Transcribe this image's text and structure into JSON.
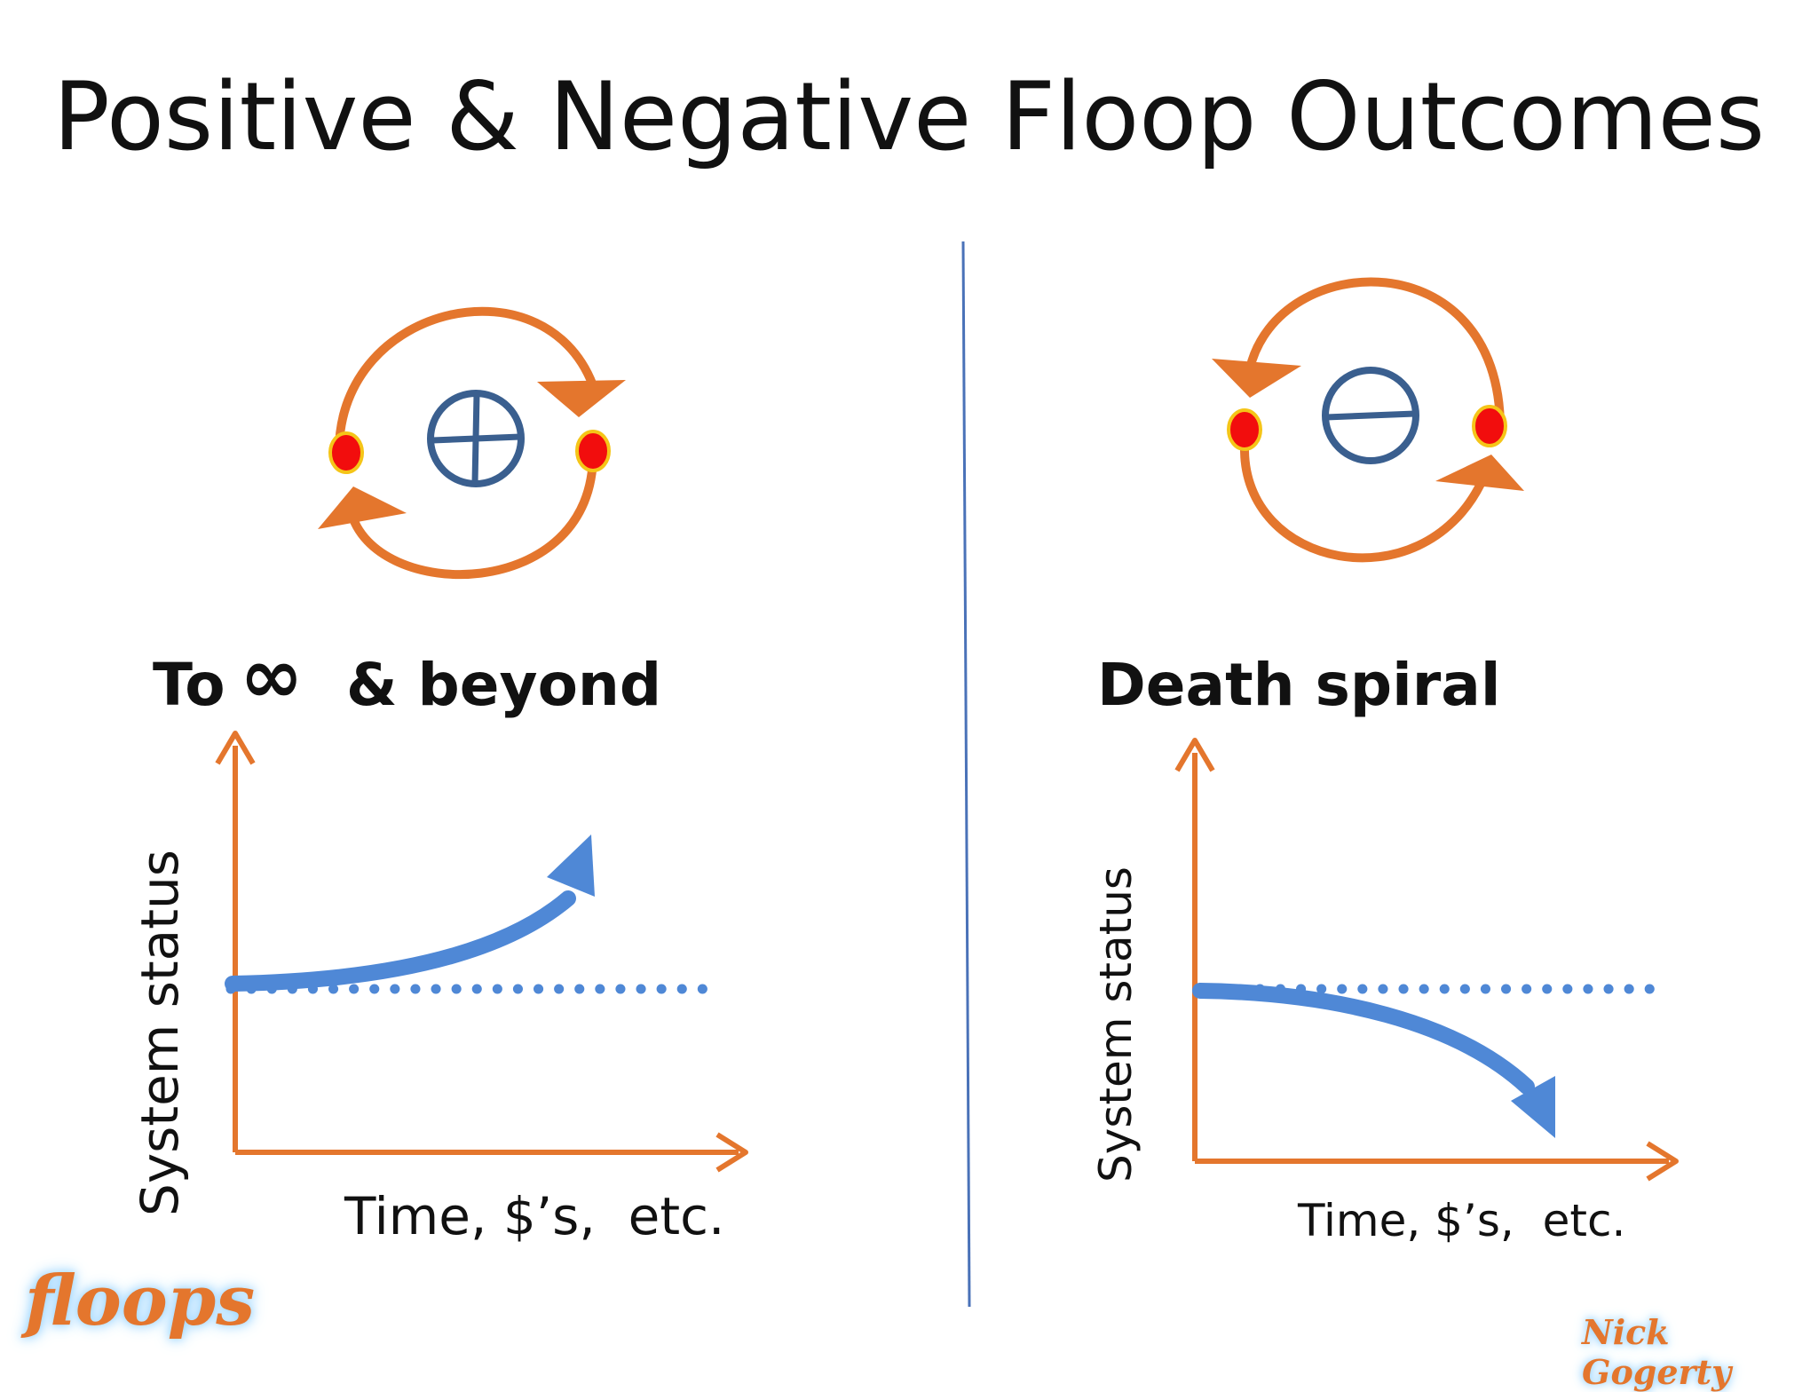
{
  "title": "Positive & Negative Floop Outcomes",
  "left": {
    "heading_prefix": "To",
    "infinity_symbol": "∞",
    "heading_suffix": "& beyond",
    "ylabel": "System status",
    "xlabel": "Time, $’s,  etc."
  },
  "right": {
    "heading": "Death spiral",
    "ylabel": "System status",
    "xlabel": "Time, $’s,  etc."
  },
  "branding": {
    "logo": "floops",
    "author": "Nick Gogerty"
  },
  "colors": {
    "loop": "#e4762d",
    "node": "#f20d0d",
    "node_ring": "#f5c518",
    "sign": "#3a5f8f",
    "curve": "#4f88d6",
    "divider": "#4a72b8"
  }
}
